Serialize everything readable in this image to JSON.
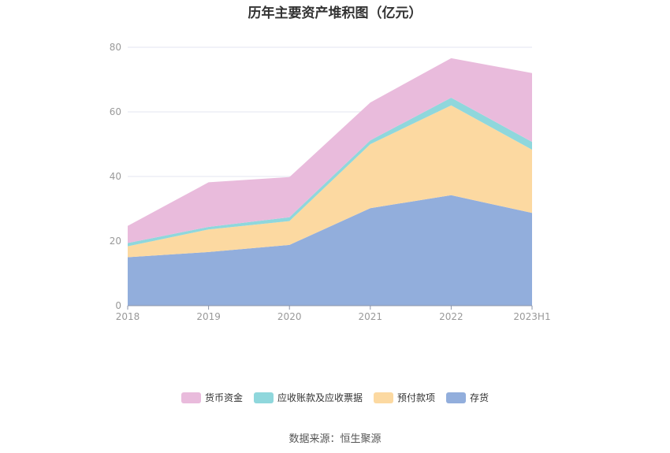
{
  "chart_data": {
    "type": "area",
    "stacked": true,
    "title": "历年主要资产堆积图（亿元）",
    "categories": [
      "2018",
      "2019",
      "2020",
      "2021",
      "2022",
      "2023H1"
    ],
    "ylim": [
      0,
      80
    ],
    "yticks": [
      0,
      20,
      40,
      60,
      80
    ],
    "grid": true,
    "legend_position": "bottom",
    "series": [
      {
        "name": "存货",
        "color": "#92aedc",
        "values": [
          15.0,
          16.6,
          18.8,
          30.2,
          34.2,
          28.7
        ]
      },
      {
        "name": "预付款项",
        "color": "#fcd9a1",
        "values": [
          3.4,
          7.0,
          7.4,
          19.8,
          27.8,
          19.6
        ]
      },
      {
        "name": "应收账款及应收票据",
        "color": "#8fd7dc",
        "values": [
          1.0,
          0.8,
          1.2,
          1.2,
          2.4,
          2.4
        ]
      },
      {
        "name": "货币资金",
        "color": "#e9bbdc",
        "values": [
          5.3,
          13.8,
          12.4,
          11.7,
          12.2,
          21.3
        ]
      }
    ],
    "legend_order": [
      "货币资金",
      "应收账款及应收票据",
      "预付款项",
      "存货"
    ]
  },
  "source": "数据来源：恒生聚源"
}
